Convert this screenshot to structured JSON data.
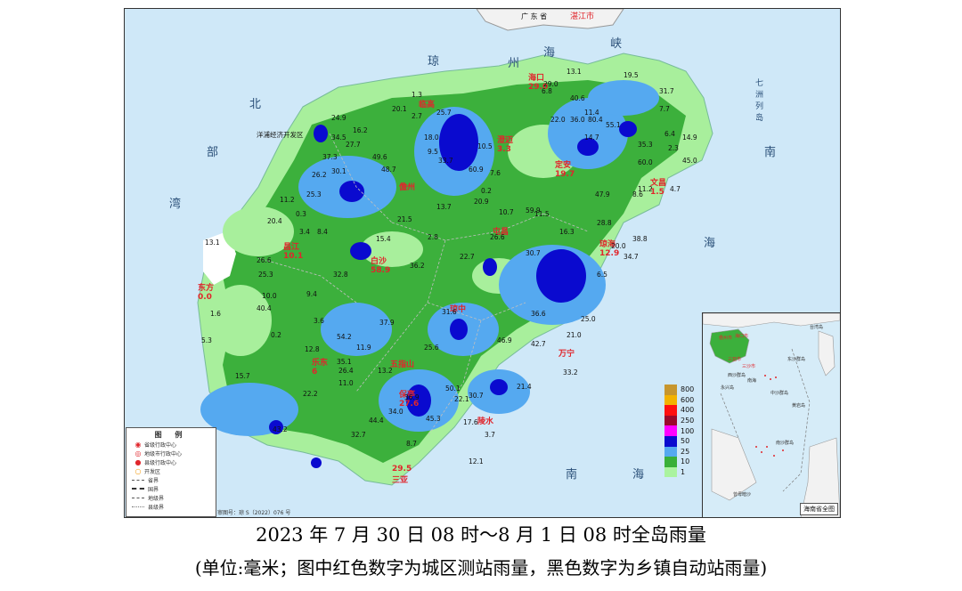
{
  "caption": {
    "line1": "2023 年 7 月 30 日 08 时～8 月 1 日 08 时全岛雨量",
    "line2": "(单位:毫米；图中红色数字为城区测站雨量，黑色数字为乡镇自动站雨量)"
  },
  "map": {
    "top_labels": [
      "广 东 省",
      "湛江市"
    ],
    "sea_labels": [
      "琼",
      "州",
      "海",
      "峡",
      "北",
      "部",
      "湾",
      "南",
      "海",
      "七",
      "洲",
      "列",
      "岛",
      "南",
      "海"
    ],
    "dev_zone": "洋浦经济开发区",
    "cities": [
      {
        "name": "海口",
        "value": "29.0"
      },
      {
        "name": "临高",
        "value": ""
      },
      {
        "name": "澄迈",
        "value": "3.3"
      },
      {
        "name": "定安",
        "value": "19.7"
      },
      {
        "name": "文昌",
        "value": "1.5"
      },
      {
        "name": "儋州",
        "value": ""
      },
      {
        "name": "屯昌",
        "value": ""
      },
      {
        "name": "琼海",
        "value": "12.9"
      },
      {
        "name": "昌江",
        "value": "10.1"
      },
      {
        "name": "白沙",
        "value": "58.9"
      },
      {
        "name": "东方",
        "value": "0.0"
      },
      {
        "name": "琼中",
        "value": ""
      },
      {
        "name": "万宁",
        "value": ""
      },
      {
        "name": "乐东",
        "value": "6"
      },
      {
        "name": "五指山",
        "value": ""
      },
      {
        "name": "保亭",
        "value": "27.6"
      },
      {
        "name": "陵水",
        "value": ""
      },
      {
        "name": "三亚",
        "value": "29.5"
      }
    ],
    "stations": [
      "19.5",
      "31.7",
      "7.7",
      "13.1",
      "6.8",
      "29.0",
      "40.6",
      "11.4",
      "22.0",
      "36.0",
      "80.4",
      "55.1",
      "14.7",
      "35.3",
      "6.4",
      "14.9",
      "2.3",
      "45.0",
      "60.0",
      "1.3",
      "25.7",
      "2.7",
      "20.1",
      "24.9",
      "16.2",
      "34.5",
      "27.7",
      "37.3",
      "49.6",
      "48.7",
      "18.0",
      "33.7",
      "60.9",
      "9.5",
      "7.6",
      "10.5",
      "0.2",
      "20.9",
      "26.2",
      "30.1",
      "11.2",
      "25.3",
      "0.3",
      "20.4",
      "3.4",
      "8.4",
      "21.5",
      "2.8",
      "13.7",
      "10.7",
      "59.9",
      "11.5",
      "47.9",
      "8.6",
      "11.2",
      "28.8",
      "4.7",
      "13.1",
      "26.6",
      "25.3",
      "10.0",
      "40.4",
      "32.8",
      "15.4",
      "36.2",
      "22.7",
      "26.6",
      "30.7",
      "20.0",
      "38.8",
      "34.7",
      "16.3",
      "6.5",
      "1.6",
      "9.4",
      "3.6",
      "0.2",
      "5.3",
      "12.8",
      "35.1",
      "54.2",
      "37.9",
      "11.9",
      "13.2",
      "31.6",
      "25.6",
      "36.6",
      "46.9",
      "42.7",
      "21.0",
      "25.0",
      "15.7",
      "22.2",
      "11.0",
      "26.4",
      "36.9",
      "34.0",
      "30.7",
      "50.1",
      "22.1",
      "45.3",
      "17.6",
      "21.4",
      "33.2",
      "43.2",
      "44.4",
      "32.7",
      "8.7",
      "3.7",
      "12.1"
    ],
    "legend": {
      "title": "图 例",
      "items": [
        "省级行政中心",
        "地级市行政中心",
        "县级行政中心",
        "开发区",
        "省界",
        "国界",
        "地级界",
        "县级界"
      ]
    },
    "approval": "审图号：琼 S（2022）076 号",
    "colorbar": {
      "labels": [
        "800",
        "600",
        "400",
        "250",
        "100",
        "50",
        "25",
        "10",
        "1"
      ],
      "colors": [
        "#c7962e",
        "#f3b200",
        "#ff1010",
        "#9b0a2c",
        "#ff00ff",
        "#0a0acf",
        "#55a9f0",
        "#39b039",
        "#aaf3a0"
      ]
    },
    "inset": {
      "title": "海南省全图",
      "labels": [
        "东沙群岛",
        "中沙群岛",
        "南海",
        "南沙群岛",
        "西沙群岛",
        "黄岩岛",
        "台湾岛",
        "曾母暗沙",
        "永兴岛"
      ],
      "cities": [
        "儋州市",
        "海口市",
        "三亚市",
        "三沙市"
      ]
    }
  }
}
